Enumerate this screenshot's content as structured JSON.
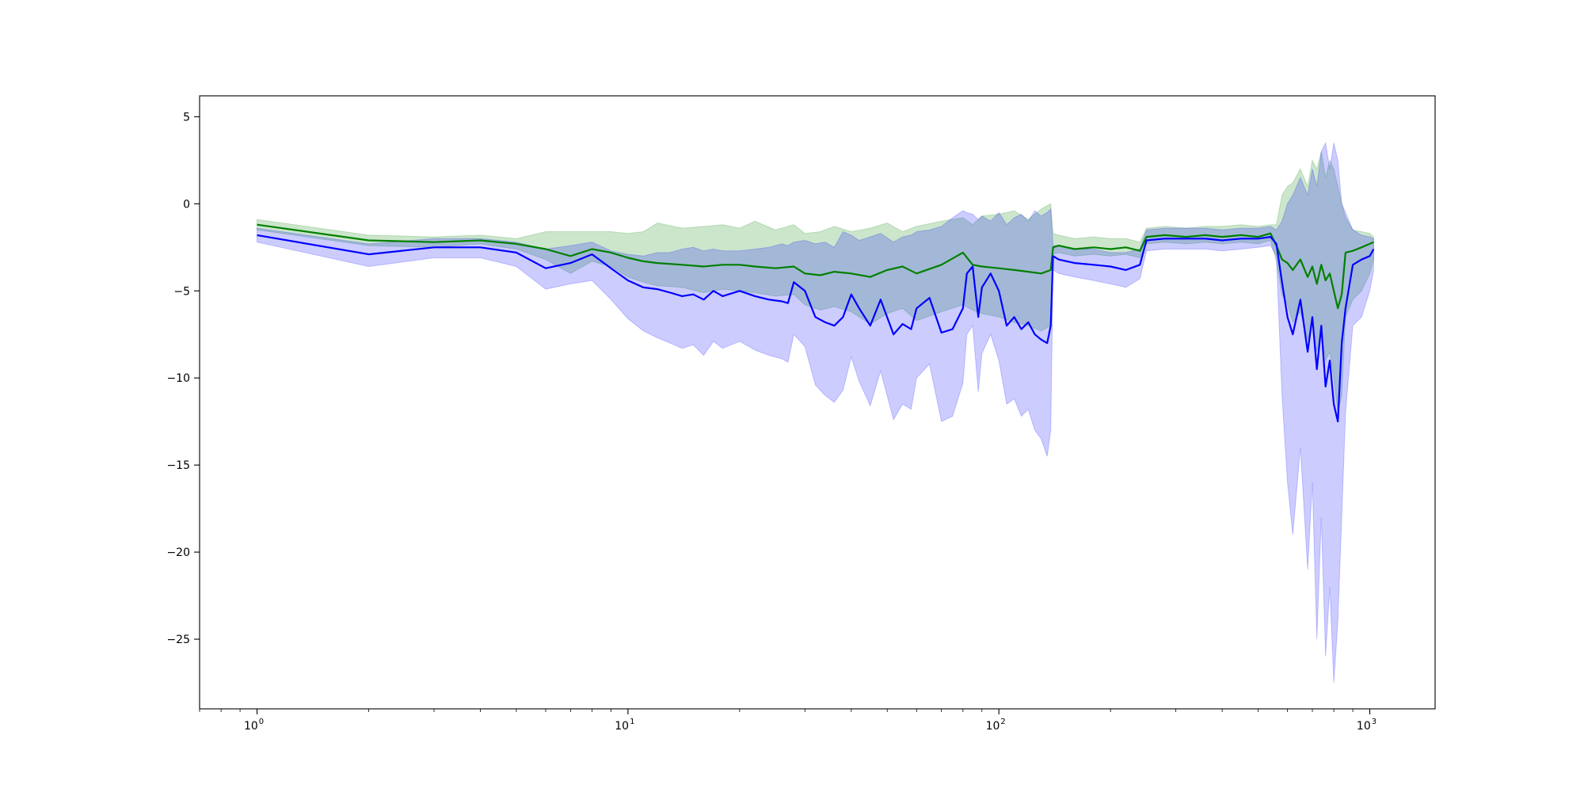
{
  "chart_data": {
    "type": "line",
    "title": "",
    "xlabel": "",
    "ylabel": "",
    "x_scale": "log",
    "xlim": [
      0.7,
      1500
    ],
    "ylim": [
      -29,
      6.2
    ],
    "grid": false,
    "legend": "none",
    "x_ticks": [
      {
        "value": 1,
        "base": "10",
        "exp": "0"
      },
      {
        "value": 10,
        "base": "10",
        "exp": "1"
      },
      {
        "value": 100,
        "base": "10",
        "exp": "2"
      },
      {
        "value": 1000,
        "base": "10",
        "exp": "3"
      }
    ],
    "y_ticks": [
      {
        "value": 5,
        "label": "5"
      },
      {
        "value": 0,
        "label": "0"
      },
      {
        "value": -5,
        "label": "−5"
      },
      {
        "value": -10,
        "label": "−10"
      },
      {
        "value": -15,
        "label": "−15"
      },
      {
        "value": -20,
        "label": "−20"
      },
      {
        "value": -25,
        "label": "−25"
      }
    ],
    "series": [
      {
        "color": "#008000",
        "band_color": "#008000",
        "x": [
          1,
          2,
          3,
          4,
          5,
          6,
          7,
          8,
          9,
          10,
          11,
          12,
          14,
          16,
          18,
          20,
          22,
          25,
          28,
          30,
          33,
          36,
          40,
          45,
          50,
          55,
          60,
          70,
          80,
          85,
          90,
          100,
          110,
          120,
          130,
          138,
          140,
          145,
          160,
          180,
          200,
          220,
          240,
          250,
          280,
          320,
          360,
          400,
          450,
          500,
          540,
          560,
          580,
          600,
          620,
          650,
          680,
          700,
          720,
          740,
          760,
          780,
          800,
          820,
          840,
          860,
          900,
          950,
          1000,
          1024
        ],
        "y": [
          -1.2,
          -2.1,
          -2.2,
          -2.1,
          -2.3,
          -2.6,
          -3.0,
          -2.6,
          -2.8,
          -3.1,
          -3.3,
          -3.4,
          -3.5,
          -3.6,
          -3.5,
          -3.5,
          -3.6,
          -3.7,
          -3.6,
          -4.0,
          -4.1,
          -3.9,
          -4.0,
          -4.2,
          -3.8,
          -3.6,
          -4.0,
          -3.5,
          -2.8,
          -3.5,
          -3.6,
          -3.7,
          -3.8,
          -3.9,
          -4.0,
          -3.8,
          -2.5,
          -2.4,
          -2.6,
          -2.5,
          -2.6,
          -2.5,
          -2.7,
          -1.9,
          -1.8,
          -1.9,
          -1.8,
          -1.9,
          -1.8,
          -1.9,
          -1.7,
          -2.4,
          -3.2,
          -3.4,
          -3.8,
          -3.2,
          -4.2,
          -3.6,
          -4.6,
          -3.5,
          -4.4,
          -4.0,
          -5.0,
          -6.0,
          -5.2,
          -2.8,
          -2.7,
          -2.5,
          -2.3,
          -2.2
        ],
        "lower": [
          -1.5,
          -2.4,
          -2.5,
          -2.3,
          -2.6,
          -3.2,
          -4.0,
          -3.3,
          -3.6,
          -4.2,
          -4.5,
          -4.7,
          -4.8,
          -5.1,
          -4.9,
          -5.0,
          -5.1,
          -5.3,
          -5.2,
          -5.8,
          -6.1,
          -5.9,
          -6.2,
          -6.9,
          -6.3,
          -6.0,
          -6.7,
          -6.2,
          -5.8,
          -6.1,
          -6.3,
          -6.5,
          -6.8,
          -7.0,
          -7.3,
          -7.0,
          -2.9,
          -2.8,
          -3.0,
          -2.9,
          -3.0,
          -2.9,
          -3.1,
          -2.3,
          -2.2,
          -2.3,
          -2.2,
          -2.3,
          -2.2,
          -2.3,
          -2.1,
          -3.3,
          -5.2,
          -5.8,
          -6.8,
          -6.2,
          -7.8,
          -6.9,
          -8.5,
          -7.2,
          -9.0,
          -8.5,
          -10.0,
          -12.0,
          -11.0,
          -6.5,
          -5.5,
          -5.0,
          -4.0,
          -3.2
        ],
        "upper": [
          -0.9,
          -1.8,
          -1.9,
          -1.8,
          -2.0,
          -1.6,
          -1.6,
          -1.6,
          -1.6,
          -1.7,
          -1.6,
          -1.1,
          -1.4,
          -1.3,
          -1.2,
          -1.4,
          -1.0,
          -1.5,
          -1.2,
          -1.7,
          -1.6,
          -1.3,
          -1.6,
          -1.4,
          -1.1,
          -1.6,
          -1.3,
          -1.0,
          -0.8,
          -1.2,
          -0.7,
          -0.6,
          -0.4,
          -0.9,
          -0.3,
          0.0,
          -1.7,
          -1.8,
          -2.0,
          -1.9,
          -2.0,
          -2.0,
          -2.2,
          -1.4,
          -1.3,
          -1.4,
          -1.3,
          -1.3,
          -1.2,
          -1.3,
          -1.2,
          -1.2,
          0.5,
          1.0,
          1.2,
          2.0,
          1.0,
          2.5,
          2.0,
          3.0,
          1.5,
          2.5,
          2.0,
          1.0,
          0.0,
          -0.8,
          -1.5,
          -1.6,
          -1.7,
          -1.9
        ]
      },
      {
        "color": "#0000ff",
        "band_color": "#0000ff",
        "x": [
          1,
          2,
          3,
          4,
          5,
          6,
          7,
          8,
          9,
          10,
          11,
          12,
          13,
          14,
          15,
          16,
          17,
          18,
          20,
          22,
          24,
          26,
          27,
          28,
          30,
          32,
          34,
          36,
          38,
          40,
          42,
          45,
          48,
          52,
          55,
          58,
          60,
          65,
          70,
          75,
          80,
          82,
          85,
          88,
          90,
          95,
          100,
          105,
          110,
          115,
          120,
          125,
          130,
          135,
          138,
          140,
          145,
          160,
          180,
          200,
          220,
          240,
          250,
          280,
          320,
          360,
          400,
          450,
          500,
          540,
          560,
          580,
          600,
          620,
          650,
          680,
          700,
          720,
          740,
          760,
          780,
          800,
          820,
          840,
          860,
          900,
          950,
          1000,
          1024
        ],
        "y": [
          -1.8,
          -2.9,
          -2.5,
          -2.5,
          -2.8,
          -3.7,
          -3.4,
          -2.9,
          -3.7,
          -4.4,
          -4.8,
          -4.9,
          -5.1,
          -5.3,
          -5.2,
          -5.5,
          -5.0,
          -5.3,
          -5.0,
          -5.3,
          -5.5,
          -5.6,
          -5.7,
          -4.5,
          -5.0,
          -6.5,
          -6.8,
          -7.0,
          -6.5,
          -5.2,
          -6.0,
          -7.0,
          -5.5,
          -7.5,
          -6.9,
          -7.2,
          -6.0,
          -5.4,
          -7.4,
          -7.2,
          -6.0,
          -4.0,
          -3.6,
          -6.5,
          -4.8,
          -4.0,
          -5.0,
          -7.0,
          -6.5,
          -7.2,
          -6.8,
          -7.5,
          -7.8,
          -8.0,
          -7.0,
          -3.0,
          -3.2,
          -3.4,
          -3.5,
          -3.6,
          -3.8,
          -3.5,
          -2.1,
          -2.0,
          -2.0,
          -2.0,
          -2.1,
          -2.0,
          -2.0,
          -1.9,
          -2.3,
          -4.5,
          -6.5,
          -7.5,
          -5.5,
          -8.5,
          -6.5,
          -9.5,
          -7.0,
          -10.5,
          -9.0,
          -11.5,
          -12.5,
          -8.0,
          -6.0,
          -3.5,
          -3.2,
          -3.0,
          -2.6
        ],
        "lower": [
          -2.2,
          -3.6,
          -3.1,
          -3.1,
          -3.6,
          -4.9,
          -4.6,
          -4.4,
          -5.5,
          -6.6,
          -7.3,
          -7.7,
          -8.0,
          -8.3,
          -8.1,
          -8.7,
          -7.9,
          -8.3,
          -7.9,
          -8.4,
          -8.7,
          -8.9,
          -9.1,
          -7.5,
          -8.2,
          -10.4,
          -11.0,
          -11.4,
          -10.7,
          -8.8,
          -10.2,
          -11.6,
          -9.6,
          -12.4,
          -11.5,
          -11.8,
          -10.0,
          -9.2,
          -12.5,
          -12.2,
          -10.3,
          -7.5,
          -7.0,
          -10.8,
          -8.6,
          -7.5,
          -9.0,
          -11.5,
          -11.2,
          -12.2,
          -11.8,
          -13.0,
          -13.5,
          -14.5,
          -13.0,
          -3.8,
          -4.0,
          -4.2,
          -4.4,
          -4.6,
          -4.8,
          -4.3,
          -2.7,
          -2.6,
          -2.6,
          -2.6,
          -2.7,
          -2.6,
          -2.5,
          -2.4,
          -3.0,
          -11.0,
          -16.0,
          -19.0,
          -14.0,
          -21.0,
          -16.0,
          -25.0,
          -18.0,
          -26.0,
          -22.0,
          -27.5,
          -24.0,
          -18.0,
          -12.0,
          -7.0,
          -6.5,
          -5.0,
          -3.8
        ],
        "upper": [
          -1.4,
          -2.3,
          -2.0,
          -2.0,
          -2.2,
          -2.6,
          -2.4,
          -2.2,
          -2.7,
          -2.9,
          -3.0,
          -2.8,
          -2.8,
          -2.6,
          -2.5,
          -2.7,
          -2.6,
          -2.7,
          -2.7,
          -2.6,
          -2.5,
          -2.3,
          -2.4,
          -2.2,
          -2.1,
          -2.3,
          -2.2,
          -2.5,
          -1.6,
          -1.8,
          -2.1,
          -1.9,
          -1.7,
          -2.2,
          -1.9,
          -1.8,
          -1.6,
          -1.5,
          -1.3,
          -0.8,
          -0.4,
          -0.5,
          -0.6,
          -0.9,
          -0.7,
          -1.0,
          -0.5,
          -1.2,
          -0.8,
          -0.6,
          -1.0,
          -0.4,
          -0.7,
          -0.5,
          -0.3,
          -2.4,
          -2.4,
          -2.6,
          -2.6,
          -2.8,
          -2.8,
          -2.6,
          -1.5,
          -1.4,
          -1.4,
          -1.4,
          -1.5,
          -1.4,
          -1.4,
          -1.3,
          -1.5,
          -1.0,
          0.0,
          0.5,
          1.5,
          0.5,
          2.0,
          1.0,
          3.0,
          3.5,
          2.0,
          3.5,
          2.5,
          0.0,
          -0.5,
          -1.5,
          -1.8,
          -1.9,
          -2.0
        ]
      }
    ]
  }
}
